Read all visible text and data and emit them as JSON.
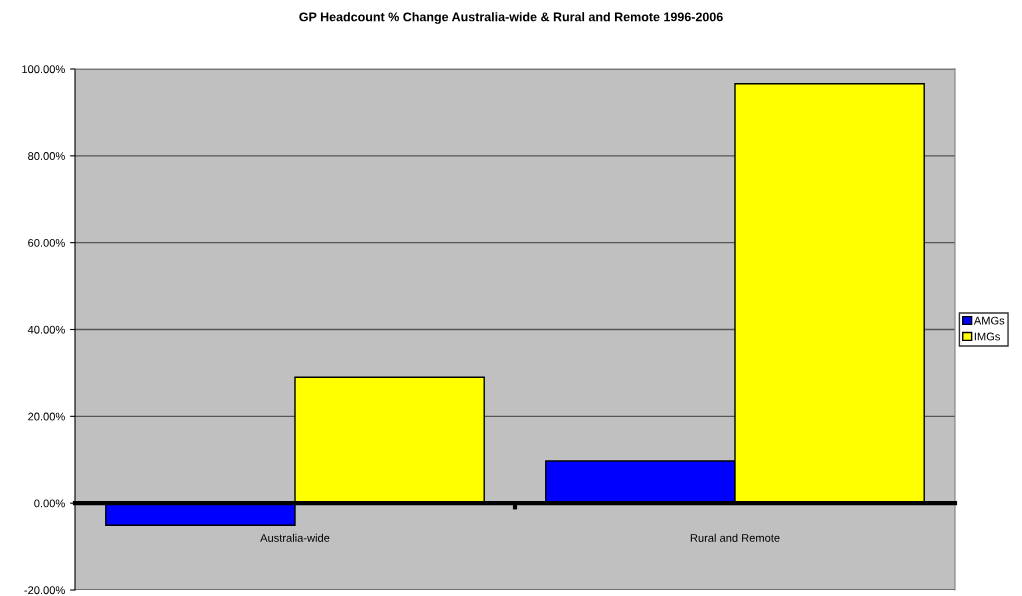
{
  "chart_data": {
    "type": "bar",
    "title": "GP Headcount % Change Australia-wide & Rural and Remote 1996-2006",
    "categories": [
      "Australia-wide",
      "Rural and Remote"
    ],
    "series": [
      {
        "name": "AMGs",
        "color": "#0000ff",
        "values": [
          -5.1,
          9.7
        ]
      },
      {
        "name": "IMGs",
        "color": "#ffff00",
        "values": [
          29.0,
          96.6
        ]
      }
    ],
    "ylim": [
      -20,
      100
    ],
    "yticks": [
      {
        "value": -20,
        "label": "-20.00%"
      },
      {
        "value": 0,
        "label": "0.00%"
      },
      {
        "value": 20,
        "label": "20.00%"
      },
      {
        "value": 40,
        "label": "40.00%"
      },
      {
        "value": 60,
        "label": "60.00%"
      },
      {
        "value": 80,
        "label": "80.00%"
      },
      {
        "value": 100,
        "label": "100.00%"
      }
    ],
    "grid": "y",
    "legend": "right"
  }
}
